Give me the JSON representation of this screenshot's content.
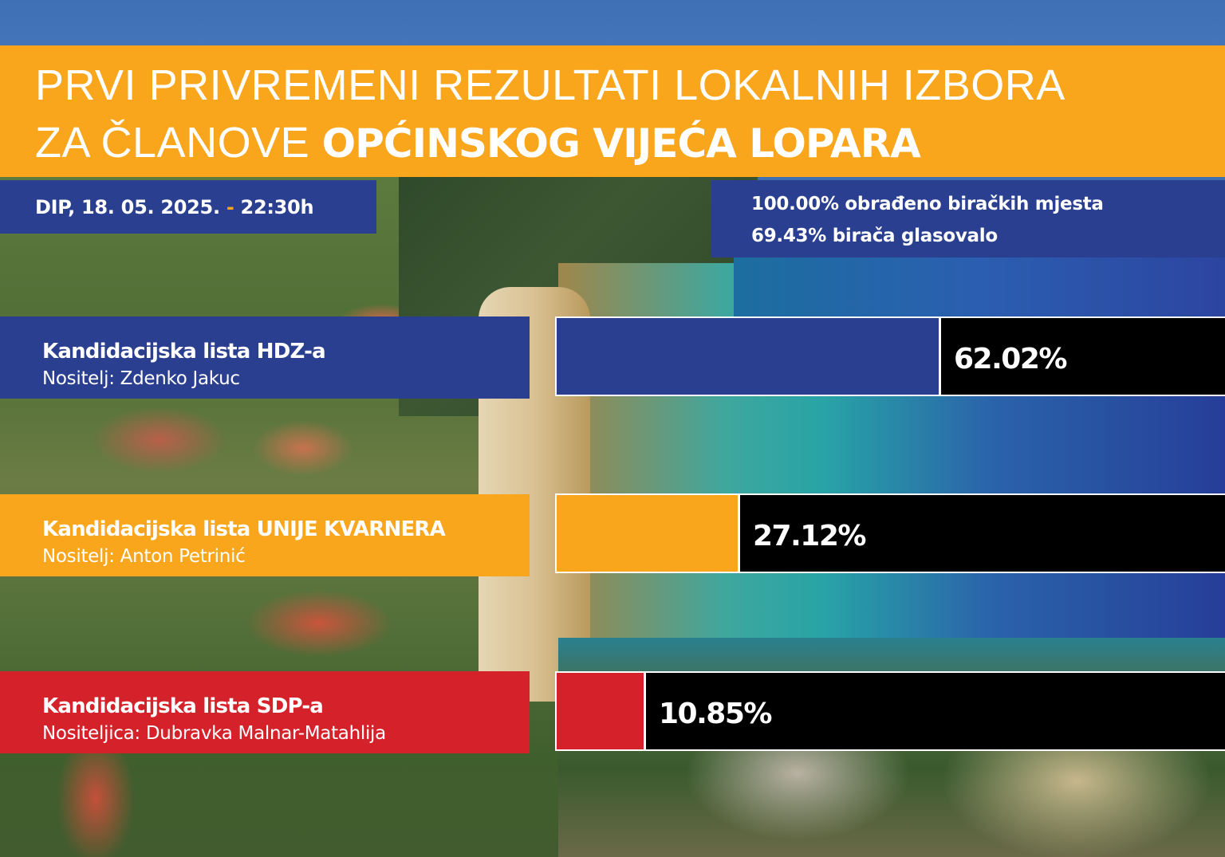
{
  "header": {
    "title_line1": "PRVI PRIVREMENI REZULTATI LOKALNIH IZBORA",
    "title_line2_regular": "ZA ČLANOVE ",
    "title_line2_bold": "OPĆINSKOG VIJEĆA LOPARA"
  },
  "info": {
    "date_prefix": "DIP, 18. 05. 2025. ",
    "date_separator": "-",
    "date_time": " 22:30h",
    "processed": "100.00% obrađeno biračkih mjesta",
    "turnout": "69.43% birača glasovalo"
  },
  "colors": {
    "orange": "#f9a61c",
    "blue": "#2b3f91",
    "red": "#d5222a",
    "black": "#000000"
  },
  "results": [
    {
      "party": "Kandidacijska lista HDZ-a",
      "holder": "Nositelj: Zdenko Jakuc",
      "value": 62.02,
      "label": "62.02%",
      "color": "#2b3f91"
    },
    {
      "party": "Kandidacijska lista UNIJE KVARNERA",
      "holder": "Nositelj: Anton Petrinić",
      "value": 27.12,
      "label": "27.12%",
      "color": "#f9a61c"
    },
    {
      "party": "Kandidacijska lista SDP-a",
      "holder": "Nositeljica: Dubravka Malnar-Matahlija",
      "value": 10.85,
      "label": "10.85%",
      "color": "#d5222a"
    }
  ],
  "chart_data": {
    "type": "bar",
    "orientation": "horizontal",
    "title": "PRVI PRIVREMENI REZULTATI LOKALNIH IZBORA ZA ČLANOVE OPĆINSKOG VIJEĆA LOPARA",
    "subtitle": "DIP, 18. 05. 2025. - 22:30h",
    "annotations": [
      "100.00% obrađeno biračkih mjesta",
      "69.43% birača glasovalo"
    ],
    "categories": [
      "Kandidacijska lista HDZ-a",
      "Kandidacijska lista UNIJE KVARNERA",
      "Kandidacijska lista SDP-a"
    ],
    "holders": [
      "Nositelj: Zdenko Jakuc",
      "Nositelj: Anton Petrinić",
      "Nositeljica: Dubravka Malnar-Matahlija"
    ],
    "values": [
      62.02,
      27.12,
      10.85
    ],
    "colors": [
      "#2b3f91",
      "#f9a61c",
      "#d5222a"
    ],
    "unit": "%",
    "xlim": [
      0,
      100
    ],
    "grid": false,
    "legend": "none"
  }
}
